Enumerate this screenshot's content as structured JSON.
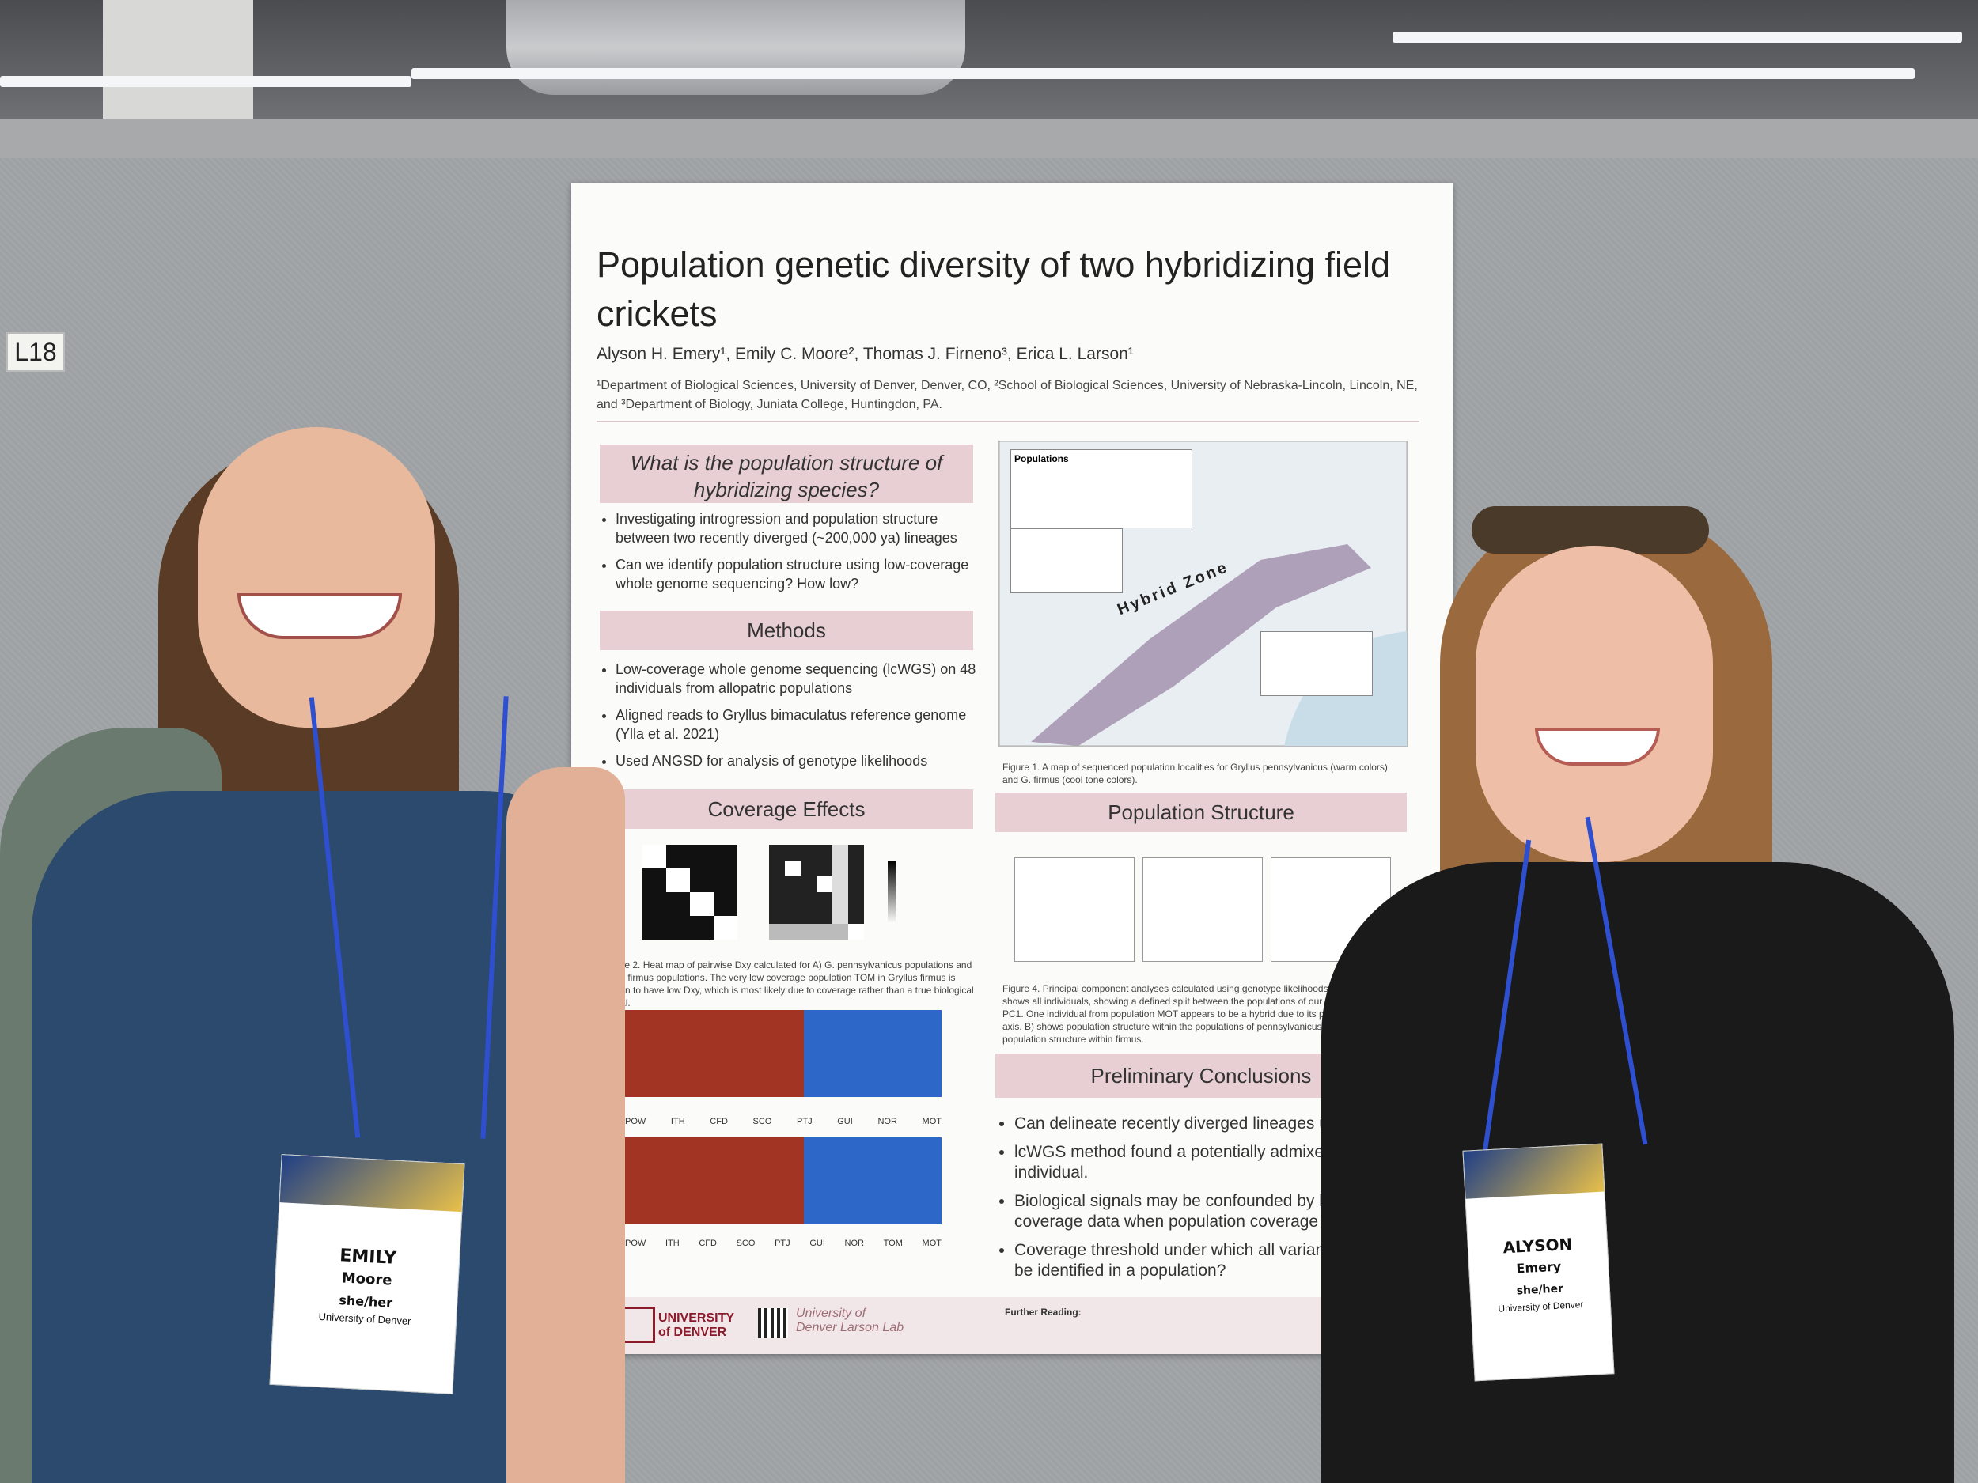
{
  "booth_tag": "L18",
  "poster": {
    "title": "Population genetic diversity of two hybridizing field crickets",
    "authors": "Alyson H. Emery¹, Emily C. Moore², Thomas J. Firneno³, Erica L. Larson¹",
    "affiliations": "¹Department of Biological Sciences, University of Denver, Denver, CO, ²School of Biological Sciences, University of Nebraska-Lincoln, Lincoln, NE, and ³Department of Biology, Juniata College, Huntingdon, PA.",
    "question": {
      "heading": "What is the population structure of hybridizing species?",
      "bullets": [
        "Investigating introgression and population structure between two recently diverged (~200,000 ya) lineages",
        "Can we identify population structure using low-coverage whole genome sequencing? How low?"
      ]
    },
    "methods": {
      "heading": "Methods",
      "bullets": [
        "Low-coverage whole genome sequencing (lcWGS) on 48 individuals from allopatric populations",
        "Aligned reads to Gryllus bimaculatus reference genome (Ylla et al. 2021)",
        "Used ANGSD for analysis of genotype likelihoods"
      ]
    },
    "map": {
      "legend_title": "Populations",
      "zone_label": "Hybrid Zone",
      "caption": "Figure 1. A map of sequenced population localities for Gryllus pennsylvanicus (warm colors) and G. firmus (cool tone colors)."
    },
    "coverage": {
      "heading": "Coverage Effects",
      "caption": "Figure 2. Heat map of pairwise Dxy calculated for A) G. pennsylvanicus populations and B) G. firmus populations. The very low coverage population TOM in Gryllus firmus is shown to have low Dxy, which is most likely due to coverage rather than a true biological signal.",
      "populations": [
        "POW",
        "ITH",
        "CFD",
        "SCO",
        "PTJ",
        "GUI",
        "NOR",
        "TOM",
        "MOT"
      ]
    },
    "structure": {
      "heading": "Population Structure",
      "caption": "Figure 4. Principal component analyses calculated using genotype likelihoods in PCAngsd. A) shows all individuals, showing a defined split between the populations of our two species along PC1. One individual from population MOT appears to be a hybrid due to its position along this axis. B) shows population structure within the populations of pennsylvanicus, while C) shows population structure within firmus."
    },
    "conclusions": {
      "heading": "Preliminary Conclusions",
      "bullets": [
        "Can delineate recently diverged lineages using",
        "lcWGS method found a potentially admixed individual.",
        "Biological signals may be confounded by low coverage data when population coverage is",
        "Coverage threshold under which all variants cannot be identified in a population?"
      ]
    },
    "footer": {
      "university": "UNIVERSITY of DENVER",
      "lab": "University of Denver Larson Lab",
      "further_reading": "Further Reading:"
    }
  },
  "badges": {
    "left": {
      "first": "EMILY",
      "last": "Moore",
      "pronouns": "she/her",
      "org": "University of Denver"
    },
    "right": {
      "first": "ALYSON",
      "last": "Emery",
      "pronouns": "she/her",
      "org": "University of Denver"
    }
  },
  "colors": {
    "section_header": "#e8cfd3",
    "admix_red": "#a23423",
    "admix_blue": "#2d67c7",
    "lanyard": "#2f4fd1"
  }
}
